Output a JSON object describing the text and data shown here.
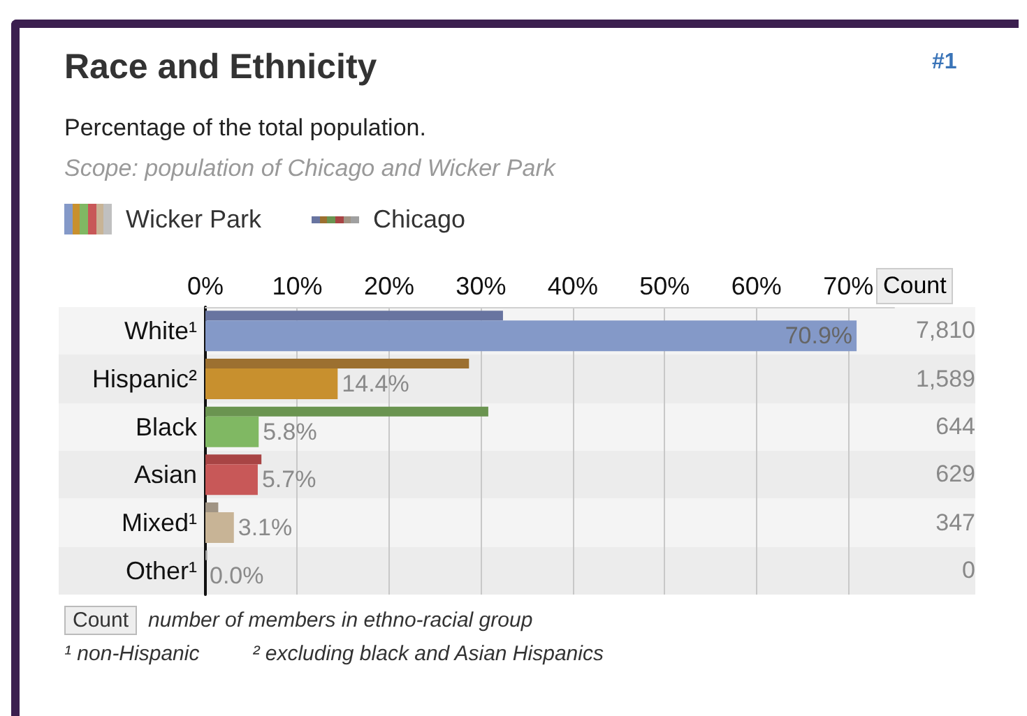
{
  "chart_data": {
    "type": "bar",
    "orientation": "horizontal",
    "title": "Race and Ethnicity",
    "subtitle": "Percentage of the total population.",
    "categories": [
      "White¹",
      "Hispanic²",
      "Black",
      "Asian",
      "Mixed¹",
      "Other¹"
    ],
    "series": [
      {
        "name": "Wicker Park",
        "colors": [
          "#8499c8",
          "#c8902e",
          "#80b863",
          "#c85858",
          "#c8b496",
          "#c0c0c0"
        ],
        "values": [
          70.9,
          14.4,
          5.8,
          5.7,
          3.1,
          0.0
        ],
        "value_labels": [
          "70.9%",
          "14.4%",
          "5.8%",
          "5.7%",
          "3.1%",
          "0.0%"
        ]
      },
      {
        "name": "Chicago",
        "colors": [
          "#6874a0",
          "#9c7030",
          "#6a9450",
          "#a84444",
          "#a09484",
          "#a0a0a0"
        ],
        "values": [
          32.4,
          28.7,
          30.8,
          6.1,
          1.4,
          0.2
        ]
      }
    ],
    "xlim": [
      0,
      75
    ],
    "xticks": [
      {
        "value": 0,
        "label": "0%"
      },
      {
        "value": 10,
        "label": "10%"
      },
      {
        "value": 20,
        "label": "20%"
      },
      {
        "value": 30,
        "label": "30%"
      },
      {
        "value": 40,
        "label": "40%"
      },
      {
        "value": 50,
        "label": "50%"
      },
      {
        "value": 60,
        "label": "60%"
      },
      {
        "value": 70,
        "label": "70%"
      }
    ],
    "grid": "x",
    "legend": "top left",
    "annotations": [
      "#1",
      "Scope: population of Chicago and Wicker Park",
      "Count",
      "7,810",
      "1,589",
      "644",
      "629",
      "347",
      "0",
      "Count",
      "number of members in ethno-racial group",
      "¹ non-Hispanic",
      "² excluding black and Asian Hispanics"
    ]
  }
}
